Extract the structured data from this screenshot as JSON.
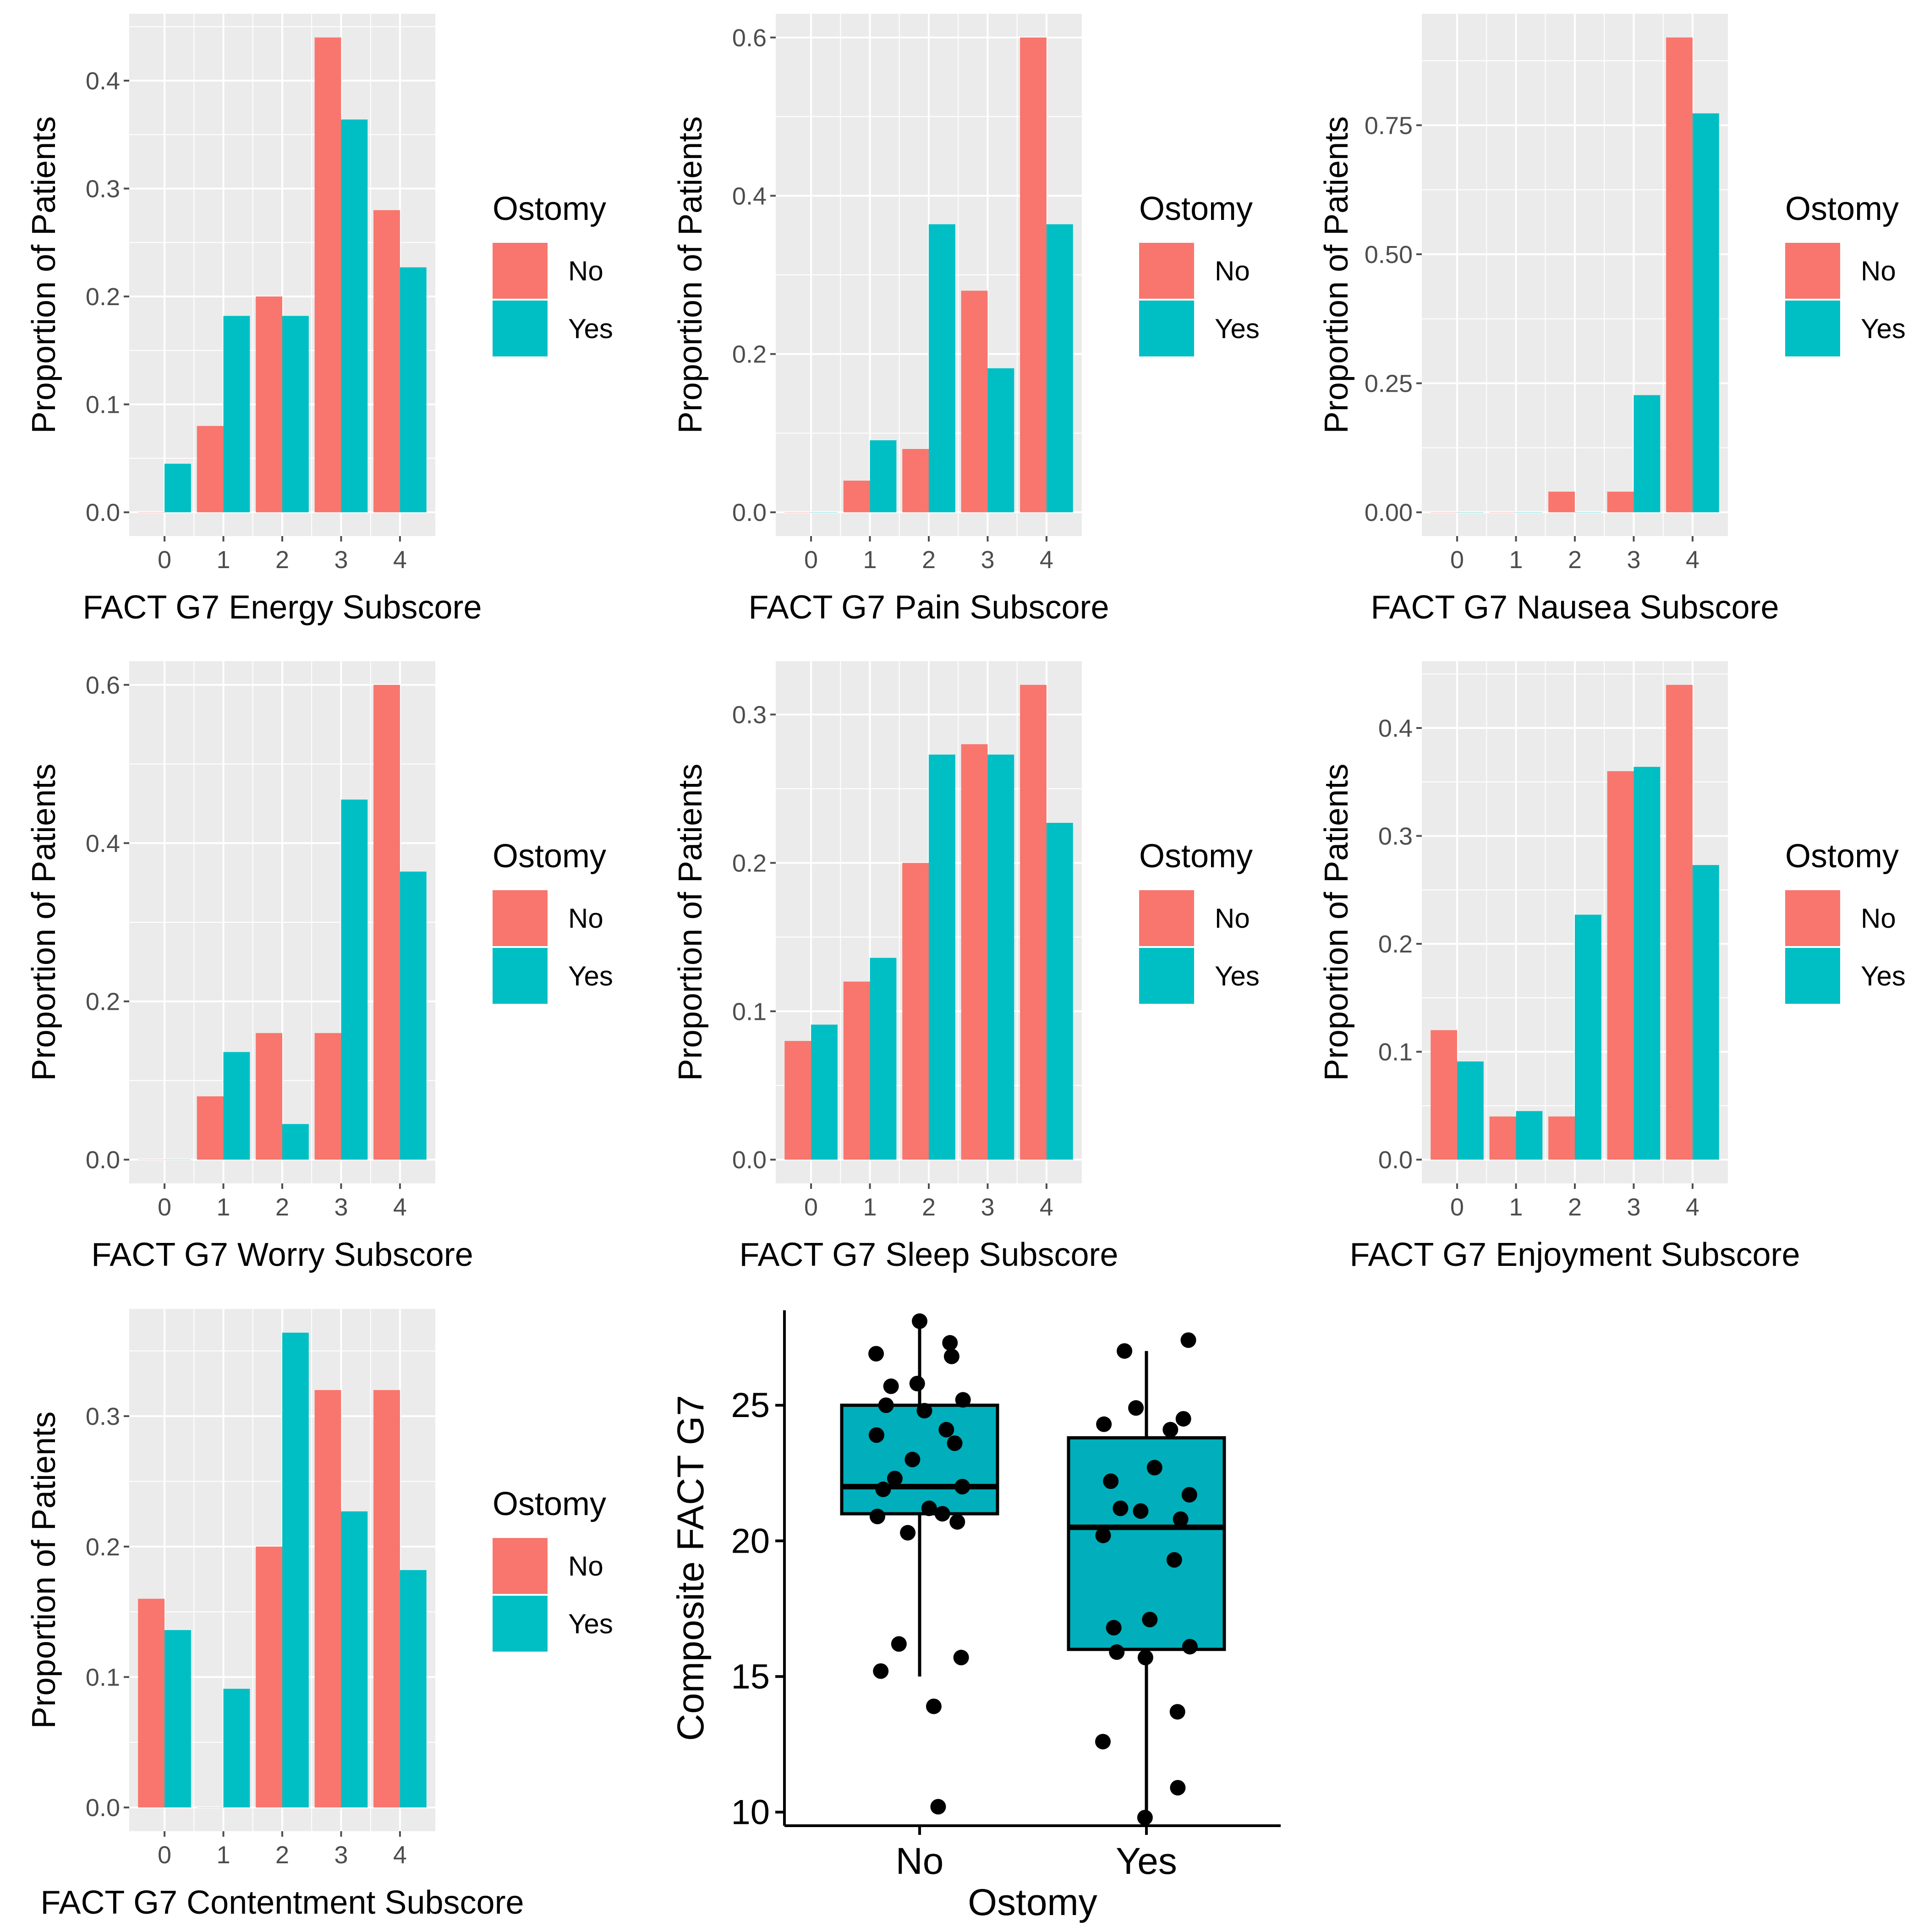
{
  "colors": {
    "no": "#F8766D",
    "yes": "#00BFC4",
    "box": "#00AFBB",
    "panel": "#EBEBEB",
    "grid": "#FFFFFF",
    "tick": "#4D4D4D",
    "dark": "#000000"
  },
  "chart_data": [
    {
      "type": "bar",
      "id": "energy",
      "xlabel": "FACT G7 Energy Subscore",
      "ylabel": "Proportion of Patients",
      "categories": [
        "0",
        "1",
        "2",
        "3",
        "4"
      ],
      "ylim": [
        0,
        0.44
      ],
      "yticks": [
        0.0,
        0.1,
        0.2,
        0.3,
        0.4
      ],
      "ytick_labels": [
        "0.0",
        "0.1",
        "0.2",
        "0.3",
        "0.4"
      ],
      "legend_title": "Ostomy",
      "legend_labels": [
        "No",
        "Yes"
      ],
      "series": [
        {
          "name": "No",
          "values": [
            0.0,
            0.08,
            0.2,
            0.44,
            0.28
          ]
        },
        {
          "name": "Yes",
          "values": [
            0.045,
            0.182,
            0.182,
            0.364,
            0.227
          ]
        }
      ]
    },
    {
      "type": "bar",
      "id": "pain",
      "xlabel": "FACT G7 Pain Subscore",
      "ylabel": "Proportion of Patients",
      "categories": [
        "0",
        "1",
        "2",
        "3",
        "4"
      ],
      "ylim": [
        0,
        0.6
      ],
      "yticks": [
        0.0,
        0.2,
        0.4,
        0.6
      ],
      "ytick_labels": [
        "0.0",
        "0.2",
        "0.4",
        "0.6"
      ],
      "legend_title": "Ostomy",
      "legend_labels": [
        "No",
        "Yes"
      ],
      "series": [
        {
          "name": "No",
          "values": [
            0.0,
            0.04,
            0.08,
            0.28,
            0.6
          ]
        },
        {
          "name": "Yes",
          "values": [
            0.0,
            0.091,
            0.364,
            0.182,
            0.364
          ]
        }
      ]
    },
    {
      "type": "bar",
      "id": "nausea",
      "xlabel": "FACT G7 Nausea Subscore",
      "ylabel": "Proportion of Patients",
      "categories": [
        "0",
        "1",
        "2",
        "3",
        "4"
      ],
      "ylim": [
        0,
        0.92
      ],
      "yticks": [
        0.0,
        0.25,
        0.5,
        0.75
      ],
      "ytick_labels": [
        "0.00",
        "0.25",
        "0.50",
        "0.75"
      ],
      "legend_title": "Ostomy",
      "legend_labels": [
        "No",
        "Yes"
      ],
      "series": [
        {
          "name": "No",
          "values": [
            0.0,
            0.0,
            0.04,
            0.04,
            0.92
          ]
        },
        {
          "name": "Yes",
          "values": [
            0.0,
            0.0,
            0.0,
            0.227,
            0.773
          ]
        }
      ]
    },
    {
      "type": "bar",
      "id": "worry",
      "xlabel": "FACT G7 Worry Subscore",
      "ylabel": "Proportion of Patients",
      "categories": [
        "0",
        "1",
        "2",
        "3",
        "4"
      ],
      "ylim": [
        0,
        0.6
      ],
      "yticks": [
        0.0,
        0.2,
        0.4,
        0.6
      ],
      "ytick_labels": [
        "0.0",
        "0.2",
        "0.4",
        "0.6"
      ],
      "legend_title": "Ostomy",
      "legend_labels": [
        "No",
        "Yes"
      ],
      "series": [
        {
          "name": "No",
          "values": [
            0.0,
            0.08,
            0.16,
            0.16,
            0.6
          ]
        },
        {
          "name": "Yes",
          "values": [
            0.0,
            0.136,
            0.045,
            0.455,
            0.364
          ]
        }
      ]
    },
    {
      "type": "bar",
      "id": "sleep",
      "xlabel": "FACT G7 Sleep Subscore",
      "ylabel": "Proportion of Patients",
      "categories": [
        "0",
        "1",
        "2",
        "3",
        "4"
      ],
      "ylim": [
        0,
        0.32
      ],
      "yticks": [
        0.0,
        0.1,
        0.2,
        0.3
      ],
      "ytick_labels": [
        "0.0",
        "0.1",
        "0.2",
        "0.3"
      ],
      "legend_title": "Ostomy",
      "legend_labels": [
        "No",
        "Yes"
      ],
      "series": [
        {
          "name": "No",
          "values": [
            0.08,
            0.12,
            0.2,
            0.28,
            0.32
          ]
        },
        {
          "name": "Yes",
          "values": [
            0.091,
            0.136,
            0.273,
            0.273,
            0.227
          ]
        }
      ]
    },
    {
      "type": "bar",
      "id": "enjoyment",
      "xlabel": "FACT G7 Enjoyment Subscore",
      "ylabel": "Proportion of Patients",
      "categories": [
        "0",
        "1",
        "2",
        "3",
        "4"
      ],
      "ylim": [
        0,
        0.44
      ],
      "yticks": [
        0.0,
        0.1,
        0.2,
        0.3,
        0.4
      ],
      "ytick_labels": [
        "0.0",
        "0.1",
        "0.2",
        "0.3",
        "0.4"
      ],
      "legend_title": "Ostomy",
      "legend_labels": [
        "No",
        "Yes"
      ],
      "series": [
        {
          "name": "No",
          "values": [
            0.12,
            0.04,
            0.04,
            0.36,
            0.44
          ]
        },
        {
          "name": "Yes",
          "values": [
            0.091,
            0.045,
            0.227,
            0.364,
            0.273
          ]
        }
      ]
    },
    {
      "type": "bar",
      "id": "contentment",
      "xlabel": "FACT G7 Contentment Subscore",
      "ylabel": "Proportion of Patients",
      "categories": [
        "0",
        "1",
        "2",
        "3",
        "4"
      ],
      "ylim": [
        0,
        0.364
      ],
      "yticks": [
        0.0,
        0.1,
        0.2,
        0.3
      ],
      "ytick_labels": [
        "0.0",
        "0.1",
        "0.2",
        "0.3"
      ],
      "legend_title": "Ostomy",
      "legend_labels": [
        "No",
        "Yes"
      ],
      "series": [
        {
          "name": "No",
          "values": [
            0.16,
            0.0,
            0.2,
            0.32,
            0.32
          ]
        },
        {
          "name": "Yes",
          "values": [
            0.136,
            0.091,
            0.364,
            0.227,
            0.182
          ]
        }
      ]
    },
    {
      "type": "box",
      "id": "composite",
      "xlabel": "Ostomy",
      "ylabel": "Composite FACT G7",
      "categories": [
        "No",
        "Yes"
      ],
      "ylim": [
        9.5,
        28.5
      ],
      "yticks": [
        10,
        15,
        20,
        25
      ],
      "ytick_labels": [
        "10",
        "15",
        "20",
        "25"
      ],
      "boxes": [
        {
          "group": "No",
          "min": 15,
          "q1": 21,
          "median": 22,
          "q3": 25,
          "max": 28,
          "points": [
            28.1,
            27.3,
            26.9,
            26.8,
            25.8,
            25.7,
            25.2,
            25.0,
            24.8,
            24.1,
            23.9,
            23.6,
            23.0,
            22.3,
            22.0,
            21.9,
            21.2,
            21.0,
            20.9,
            20.7,
            20.3,
            16.2,
            15.7,
            15.2,
            13.9,
            10.2
          ]
        },
        {
          "group": "Yes",
          "min": 10,
          "q1": 16,
          "median": 20.5,
          "q3": 23.8,
          "max": 27,
          "points": [
            27.4,
            27.0,
            24.9,
            24.5,
            24.3,
            24.1,
            22.7,
            22.2,
            21.7,
            21.2,
            21.1,
            20.8,
            20.2,
            19.3,
            17.1,
            16.8,
            16.1,
            15.9,
            15.7,
            13.7,
            12.6,
            10.9,
            9.8
          ]
        }
      ]
    }
  ]
}
